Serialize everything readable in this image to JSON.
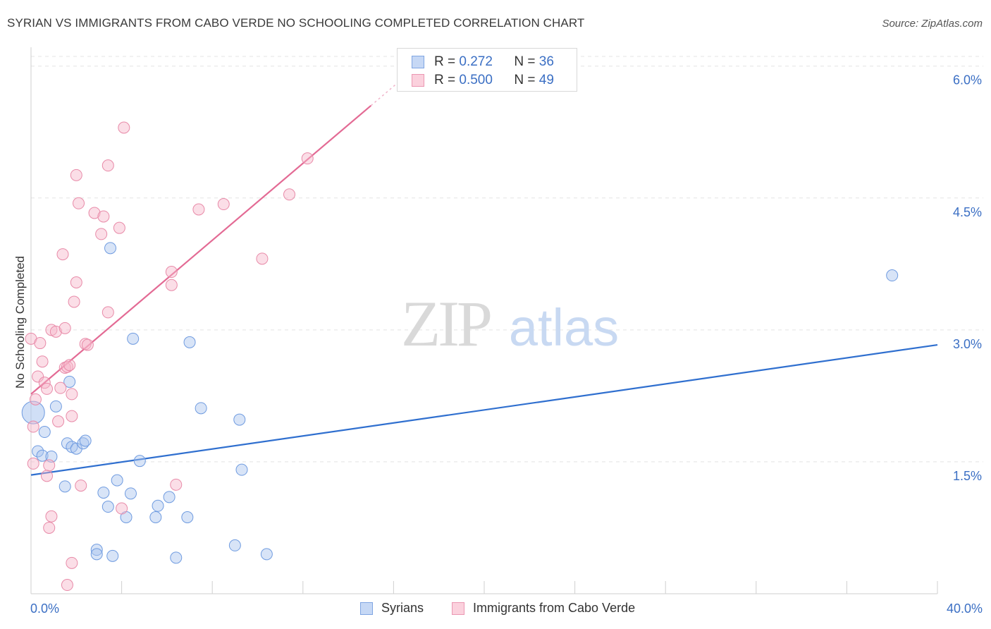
{
  "title": "SYRIAN VS IMMIGRANTS FROM CABO VERDE NO SCHOOLING COMPLETED CORRELATION CHART",
  "source": "Source: ZipAtlas.com",
  "watermark": {
    "zip": "ZIP",
    "atlas": "atlas"
  },
  "stats_box": {
    "rows": [
      {
        "r_label": "R = ",
        "r_value": "0.272",
        "n_label": "N = ",
        "n_value": "36",
        "color": "#a9c4ee"
      },
      {
        "r_label": "R = ",
        "r_value": "0.500",
        "n_label": "N = ",
        "n_value": "49",
        "color": "#f7b6c9"
      }
    ]
  },
  "legend": [
    {
      "label": "Syrians",
      "color": "#a9c4ee"
    },
    {
      "label": "Immigrants from Cabo Verde",
      "color": "#f7b6c9"
    }
  ],
  "chart_data": {
    "type": "scatter",
    "title": "SYRIAN VS IMMIGRANTS FROM CABO VERDE NO SCHOOLING COMPLETED CORRELATION CHART",
    "ylabel": "No Schooling Completed",
    "xlabel": "",
    "xlim": [
      0,
      40
    ],
    "ylim": [
      0,
      6.15
    ],
    "x_tick_labels": [
      {
        "value": 0,
        "label": "0.0%"
      },
      {
        "value": 40,
        "label": "40.0%"
      }
    ],
    "y_tick_labels": [
      {
        "value": 1.5,
        "label": "1.5%"
      },
      {
        "value": 3.0,
        "label": "3.0%"
      },
      {
        "value": 4.5,
        "label": "4.5%"
      },
      {
        "value": 6.0,
        "label": "6.0%"
      }
    ],
    "series": [
      {
        "name": "Syrians",
        "color": "#a9c4ee",
        "stroke": "#6f9be0",
        "line_color": "#2f6fcf",
        "trend": {
          "x0": 0,
          "y0": 1.35,
          "x1": 40,
          "y1": 2.83
        },
        "points": [
          [
            0.1,
            2.06
          ],
          [
            0.3,
            1.62
          ],
          [
            0.6,
            1.84
          ],
          [
            0.5,
            1.57
          ],
          [
            0.9,
            1.56
          ],
          [
            1.1,
            2.13
          ],
          [
            1.7,
            2.41
          ],
          [
            1.6,
            1.71
          ],
          [
            1.8,
            1.67
          ],
          [
            2.0,
            1.65
          ],
          [
            2.3,
            1.71
          ],
          [
            2.4,
            1.74
          ],
          [
            1.5,
            1.22
          ],
          [
            3.5,
            3.93
          ],
          [
            3.2,
            1.15
          ],
          [
            3.4,
            0.99
          ],
          [
            3.8,
            1.29
          ],
          [
            4.2,
            0.87
          ],
          [
            4.4,
            1.14
          ],
          [
            4.5,
            2.9
          ],
          [
            4.8,
            1.51
          ],
          [
            5.5,
            0.87
          ],
          [
            5.6,
            1.0
          ],
          [
            6.1,
            1.1
          ],
          [
            6.4,
            0.41
          ],
          [
            6.9,
            0.87
          ],
          [
            7.0,
            2.86
          ],
          [
            7.5,
            2.11
          ],
          [
            9.0,
            0.55
          ],
          [
            9.2,
            1.98
          ],
          [
            9.3,
            1.41
          ],
          [
            10.4,
            0.45
          ],
          [
            2.9,
            0.5
          ],
          [
            2.9,
            0.45
          ],
          [
            3.6,
            0.43
          ],
          [
            38.0,
            3.62
          ]
        ]
      },
      {
        "name": "Immigrants from Cabo Verde",
        "color": "#f7b6c9",
        "stroke": "#e88aa8",
        "line_color": "#e36a94",
        "trend": {
          "x0": 0,
          "y0": 2.27,
          "x1": 15.0,
          "y1": 5.55
        },
        "trend_dashed": {
          "x0": 15.0,
          "y0": 5.55,
          "x1": 16.5,
          "y1": 5.88
        },
        "points": [
          [
            0.0,
            2.9
          ],
          [
            0.1,
            1.9
          ],
          [
            0.2,
            2.21
          ],
          [
            0.3,
            2.47
          ],
          [
            0.4,
            2.85
          ],
          [
            0.5,
            2.64
          ],
          [
            0.6,
            2.4
          ],
          [
            0.7,
            2.33
          ],
          [
            0.8,
            1.46
          ],
          [
            0.7,
            1.34
          ],
          [
            0.8,
            0.75
          ],
          [
            0.9,
            0.88
          ],
          [
            0.9,
            3.0
          ],
          [
            1.1,
            2.98
          ],
          [
            1.2,
            1.96
          ],
          [
            1.3,
            2.34
          ],
          [
            1.4,
            3.86
          ],
          [
            1.5,
            3.02
          ],
          [
            1.5,
            2.57
          ],
          [
            1.6,
            2.58
          ],
          [
            1.7,
            2.6
          ],
          [
            1.8,
            2.27
          ],
          [
            1.8,
            2.02
          ],
          [
            1.9,
            3.32
          ],
          [
            1.6,
            0.1
          ],
          [
            1.8,
            0.35
          ],
          [
            2.0,
            3.54
          ],
          [
            2.0,
            4.76
          ],
          [
            2.1,
            4.44
          ],
          [
            2.2,
            1.23
          ],
          [
            2.4,
            2.84
          ],
          [
            2.5,
            2.83
          ],
          [
            2.8,
            4.33
          ],
          [
            3.1,
            4.09
          ],
          [
            3.2,
            4.29
          ],
          [
            3.4,
            4.87
          ],
          [
            3.4,
            3.2
          ],
          [
            3.9,
            4.16
          ],
          [
            4.0,
            0.97
          ],
          [
            4.1,
            5.3
          ],
          [
            6.2,
            3.66
          ],
          [
            6.2,
            3.51
          ],
          [
            6.4,
            1.24
          ],
          [
            7.4,
            4.37
          ],
          [
            8.5,
            4.43
          ],
          [
            10.2,
            3.81
          ],
          [
            11.4,
            4.54
          ],
          [
            12.2,
            4.95
          ],
          [
            0.1,
            1.48
          ]
        ]
      }
    ]
  }
}
